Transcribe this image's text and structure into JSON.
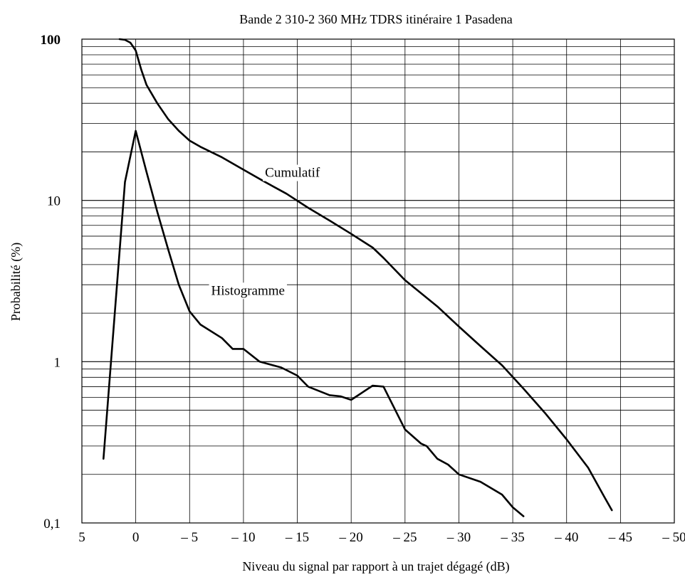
{
  "chart_data": {
    "type": "line",
    "title": "Bande 2 310-2 360 MHz TDRS itinéraire 1 Pasadena",
    "xlabel": "Niveau du signal par rapport à un trajet dégagé (dB)",
    "ylabel": "Probabilité (%)",
    "xlim": [
      5,
      -50
    ],
    "ylim": [
      0.1,
      100
    ],
    "yscale": "log",
    "grid": true,
    "x_ticks": [
      {
        "value": 5,
        "label": "5"
      },
      {
        "value": 0,
        "label": "0"
      },
      {
        "value": -5,
        "label": "– 5"
      },
      {
        "value": -10,
        "label": "– 10"
      },
      {
        "value": -15,
        "label": "– 15"
      },
      {
        "value": -20,
        "label": "– 20"
      },
      {
        "value": -25,
        "label": "– 25"
      },
      {
        "value": -30,
        "label": "– 30"
      },
      {
        "value": -35,
        "label": "– 35"
      },
      {
        "value": -40,
        "label": "– 40"
      },
      {
        "value": -45,
        "label": "– 45"
      },
      {
        "value": -50,
        "label": "– 50"
      }
    ],
    "y_ticks": [
      {
        "value": 0.1,
        "label": "0,1"
      },
      {
        "value": 1,
        "label": "1"
      },
      {
        "value": 10,
        "label": "10"
      },
      {
        "value": 100,
        "label": "100"
      }
    ],
    "series": [
      {
        "name": "Cumulatif",
        "label_at": {
          "x": -12,
          "y": 14
        },
        "points": [
          [
            1.5,
            100
          ],
          [
            1.0,
            99
          ],
          [
            0.5,
            95
          ],
          [
            0,
            85
          ],
          [
            -0.5,
            65
          ],
          [
            -1,
            52
          ],
          [
            -2,
            40
          ],
          [
            -3,
            32
          ],
          [
            -4,
            27
          ],
          [
            -5,
            23.5
          ],
          [
            -6,
            21.5
          ],
          [
            -8,
            18.5
          ],
          [
            -10,
            15.5
          ],
          [
            -12,
            13
          ],
          [
            -14,
            11
          ],
          [
            -16,
            9
          ],
          [
            -18,
            7.5
          ],
          [
            -20,
            6.2
          ],
          [
            -22,
            5.1
          ],
          [
            -23,
            4.4
          ],
          [
            -25,
            3.2
          ],
          [
            -28,
            2.2
          ],
          [
            -30,
            1.65
          ],
          [
            -32,
            1.25
          ],
          [
            -34,
            0.95
          ],
          [
            -36,
            0.68
          ],
          [
            -38,
            0.48
          ],
          [
            -40,
            0.33
          ],
          [
            -42,
            0.22
          ],
          [
            -43.5,
            0.145
          ],
          [
            -44.2,
            0.12
          ]
        ]
      },
      {
        "name": "Histogramme",
        "label_at": {
          "x": -7,
          "y": 2.6
        },
        "points": [
          [
            3,
            0.25
          ],
          [
            1,
            13
          ],
          [
            0,
            27
          ],
          [
            -1,
            15
          ],
          [
            -2,
            8.5
          ],
          [
            -3,
            5
          ],
          [
            -4,
            3
          ],
          [
            -5,
            2.05
          ],
          [
            -6,
            1.7
          ],
          [
            -8,
            1.4
          ],
          [
            -9,
            1.2
          ],
          [
            -10,
            1.2
          ],
          [
            -11.5,
            1.0
          ],
          [
            -13.5,
            0.92
          ],
          [
            -15,
            0.82
          ],
          [
            -16,
            0.7
          ],
          [
            -18,
            0.62
          ],
          [
            -19,
            0.61
          ],
          [
            -20,
            0.58
          ],
          [
            -22,
            0.71
          ],
          [
            -23,
            0.7
          ],
          [
            -25,
            0.38
          ],
          [
            -26.5,
            0.31
          ],
          [
            -27,
            0.3
          ],
          [
            -28,
            0.25
          ],
          [
            -29,
            0.23
          ],
          [
            -30,
            0.2
          ],
          [
            -32,
            0.18
          ],
          [
            -34,
            0.15
          ],
          [
            -35,
            0.125
          ],
          [
            -36,
            0.11
          ]
        ]
      }
    ]
  }
}
